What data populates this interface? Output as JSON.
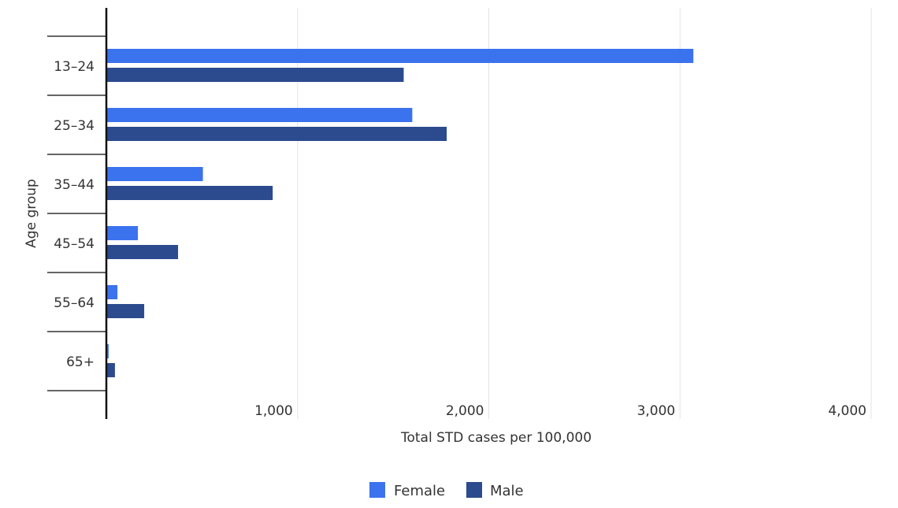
{
  "chart_data": {
    "type": "bar",
    "orientation": "horizontal",
    "categories": [
      "13–24",
      "25–34",
      "35–44",
      "45–54",
      "55–64",
      "65+"
    ],
    "series": [
      {
        "name": "Female",
        "color": "#3b72ee",
        "values": [
          3070,
          1600,
          505,
          165,
          58,
          12
        ]
      },
      {
        "name": "Male",
        "color": "#2c4a8e",
        "values": [
          1555,
          1780,
          870,
          375,
          198,
          45
        ]
      }
    ],
    "xlabel": "Total STD cases per 100,000",
    "ylabel": "Age group",
    "xlim": [
      0,
      4000
    ],
    "xticks": [
      1000,
      2000,
      3000,
      4000
    ],
    "xtick_labels": [
      "1,000",
      "2,000",
      "3,000",
      "4,000"
    ],
    "grid": "vertical",
    "legend": "bottom-center"
  }
}
